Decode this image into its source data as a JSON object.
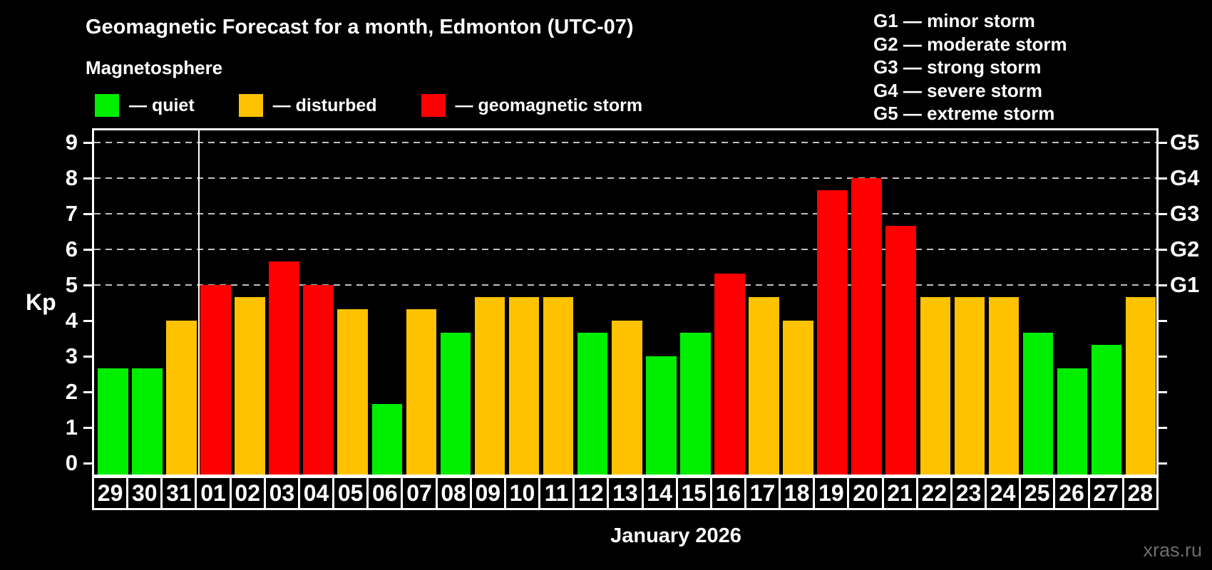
{
  "header": {
    "title": "Geomagnetic Forecast for a month, Edmonton (UTC-07)",
    "subtitle": "Magnetosphere",
    "legend": [
      {
        "name": "quiet",
        "label": "— quiet",
        "color": "#00ee00"
      },
      {
        "name": "disturbed",
        "label": "— disturbed",
        "color": "#ffc200"
      },
      {
        "name": "storm",
        "label": "— geomagnetic storm",
        "color": "#ff0000"
      }
    ],
    "storm_scale_legend": [
      "G1 — minor storm",
      "G2 — moderate storm",
      "G3 — strong storm",
      "G4 — severe storm",
      "G5 — extreme storm"
    ]
  },
  "watermark": "xras.ru",
  "chart_data": {
    "type": "bar",
    "title": "Geomagnetic Forecast for a month, Edmonton (UTC-07)",
    "subtitle": "Magnetosphere",
    "ylabel": "Kp",
    "xlabel": "January 2026",
    "ylim": [
      0,
      9.6
    ],
    "yticks": [
      0,
      1,
      2,
      3,
      4,
      5,
      6,
      7,
      8,
      9
    ],
    "gridlines": [
      5,
      6,
      7,
      8,
      9
    ],
    "grid_style": "dashed",
    "legend_position": "top",
    "right_axis": [
      {
        "kp": 5,
        "label": "G1"
      },
      {
        "kp": 6,
        "label": "G2"
      },
      {
        "kp": 7,
        "label": "G3"
      },
      {
        "kp": 8,
        "label": "G4"
      },
      {
        "kp": 9,
        "label": "G5"
      }
    ],
    "month_separator_after": "31",
    "categories": [
      "29",
      "30",
      "31",
      "01",
      "02",
      "03",
      "04",
      "05",
      "06",
      "07",
      "08",
      "09",
      "10",
      "11",
      "12",
      "13",
      "14",
      "15",
      "16",
      "17",
      "18",
      "19",
      "20",
      "21",
      "22",
      "23",
      "24",
      "25",
      "26",
      "27",
      "28"
    ],
    "values": [
      2.67,
      2.67,
      4.0,
      5.0,
      4.67,
      5.67,
      5.0,
      4.33,
      1.67,
      4.33,
      3.67,
      4.67,
      4.67,
      4.67,
      3.67,
      4.0,
      3.0,
      3.67,
      5.33,
      4.67,
      4.0,
      7.67,
      8.0,
      6.67,
      4.67,
      4.67,
      4.67,
      3.67,
      2.67,
      3.33,
      4.67
    ],
    "statuses": [
      "quiet",
      "quiet",
      "disturbed",
      "storm",
      "disturbed",
      "storm",
      "storm",
      "disturbed",
      "quiet",
      "disturbed",
      "quiet",
      "disturbed",
      "disturbed",
      "disturbed",
      "quiet",
      "disturbed",
      "quiet",
      "quiet",
      "storm",
      "disturbed",
      "disturbed",
      "storm",
      "storm",
      "storm",
      "disturbed",
      "disturbed",
      "disturbed",
      "quiet",
      "quiet",
      "quiet",
      "disturbed"
    ],
    "colors": {
      "quiet": "#00ee00",
      "disturbed": "#ffc200",
      "storm": "#ff0000"
    }
  }
}
